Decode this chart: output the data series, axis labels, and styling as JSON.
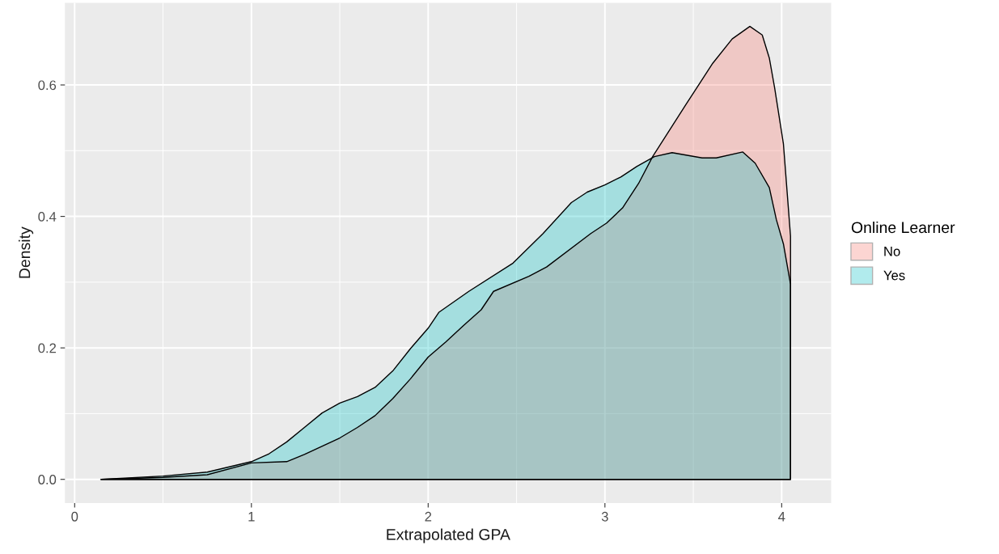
{
  "chart_data": {
    "type": "area",
    "xlabel": "Extrapolated GPA",
    "ylabel": "Density",
    "legend_title": "Online Learner",
    "legend": "right",
    "grid": true,
    "xlim": [
      -0.055,
      4.28
    ],
    "xticks": [
      0,
      1,
      2,
      3,
      4
    ],
    "ylim": [
      -0.036,
      0.725
    ],
    "yticks": [
      {
        "value": 0,
        "label": "0.0"
      },
      {
        "value": 0.2,
        "label": "0.2"
      },
      {
        "value": 0.4,
        "label": "0.4"
      },
      {
        "value": 0.6,
        "label": "0.6"
      }
    ],
    "series": [
      {
        "name": "No",
        "color": "#f8766d",
        "x": [
          0.15,
          0.5,
          0.75,
          1.0,
          1.2,
          1.3,
          1.5,
          1.6,
          1.7,
          1.8,
          1.9,
          2.0,
          2.1,
          2.2,
          2.3,
          2.37,
          2.57,
          2.67,
          2.92,
          3.01,
          3.1,
          3.19,
          3.27,
          3.46,
          3.53,
          3.61,
          3.72,
          3.82,
          3.89,
          3.93,
          3.96,
          4.01,
          4.05
        ],
        "values": [
          0.0,
          0.003,
          0.007,
          0.025,
          0.027,
          0.038,
          0.063,
          0.079,
          0.097,
          0.123,
          0.153,
          0.186,
          0.209,
          0.234,
          0.258,
          0.286,
          0.309,
          0.323,
          0.374,
          0.39,
          0.413,
          0.45,
          0.491,
          0.571,
          0.6,
          0.633,
          0.67,
          0.689,
          0.676,
          0.641,
          0.596,
          0.51,
          0.37
        ]
      },
      {
        "name": "Yes",
        "color": "#00bfc4",
        "x": [
          0.15,
          0.5,
          0.75,
          1.0,
          1.1,
          1.2,
          1.3,
          1.4,
          1.5,
          1.6,
          1.7,
          1.8,
          1.9,
          2.0,
          2.06,
          2.23,
          2.48,
          2.65,
          2.81,
          2.9,
          3.0,
          3.09,
          3.18,
          3.28,
          3.38,
          3.55,
          3.63,
          3.78,
          3.85,
          3.93,
          3.97,
          4.01,
          4.05
        ],
        "values": [
          0.0,
          0.005,
          0.011,
          0.027,
          0.039,
          0.057,
          0.079,
          0.101,
          0.116,
          0.126,
          0.14,
          0.165,
          0.199,
          0.23,
          0.254,
          0.286,
          0.329,
          0.374,
          0.421,
          0.437,
          0.448,
          0.46,
          0.476,
          0.491,
          0.497,
          0.489,
          0.489,
          0.498,
          0.481,
          0.444,
          0.395,
          0.358,
          0.297
        ]
      }
    ]
  }
}
